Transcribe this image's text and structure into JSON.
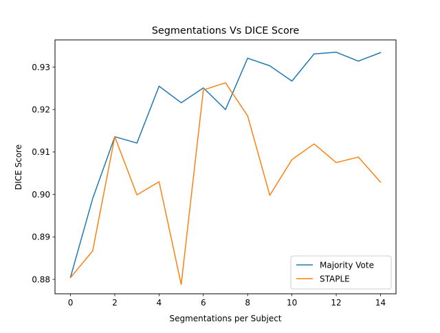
{
  "chart_data": {
    "type": "line",
    "title": "Segmentations Vs DICE Score",
    "xlabel": "Segmentations per Subject",
    "ylabel": "DICE Score",
    "x": [
      0,
      1,
      2,
      3,
      4,
      5,
      6,
      7,
      8,
      9,
      10,
      11,
      12,
      13,
      14
    ],
    "xlim": [
      -0.7,
      14.7
    ],
    "ylim": [
      0.8766,
      0.9364
    ],
    "xticks": [
      0,
      2,
      4,
      6,
      8,
      10,
      12,
      14
    ],
    "xtick_labels": [
      "0",
      "2",
      "4",
      "6",
      "8",
      "10",
      "12",
      "14"
    ],
    "yticks": [
      0.88,
      0.89,
      0.9,
      0.91,
      0.92,
      0.93
    ],
    "ytick_labels": [
      "0.88",
      "0.89",
      "0.90",
      "0.91",
      "0.92",
      "0.93"
    ],
    "grid": false,
    "legend_position": "lower right",
    "series": [
      {
        "name": "Majority Vote",
        "color": "#1f77b4",
        "values": [
          0.8805,
          0.899,
          0.9136,
          0.9121,
          0.9255,
          0.9216,
          0.9251,
          0.92,
          0.9321,
          0.9303,
          0.9267,
          0.9331,
          0.9335,
          0.9314,
          0.9334
        ]
      },
      {
        "name": "STAPLE",
        "color": "#ff7f0e",
        "values": [
          0.8804,
          0.8867,
          0.9136,
          0.8999,
          0.903,
          0.8788,
          0.9246,
          0.9263,
          0.9185,
          0.8998,
          0.9082,
          0.9119,
          0.9075,
          0.9088,
          0.9029
        ]
      }
    ]
  }
}
